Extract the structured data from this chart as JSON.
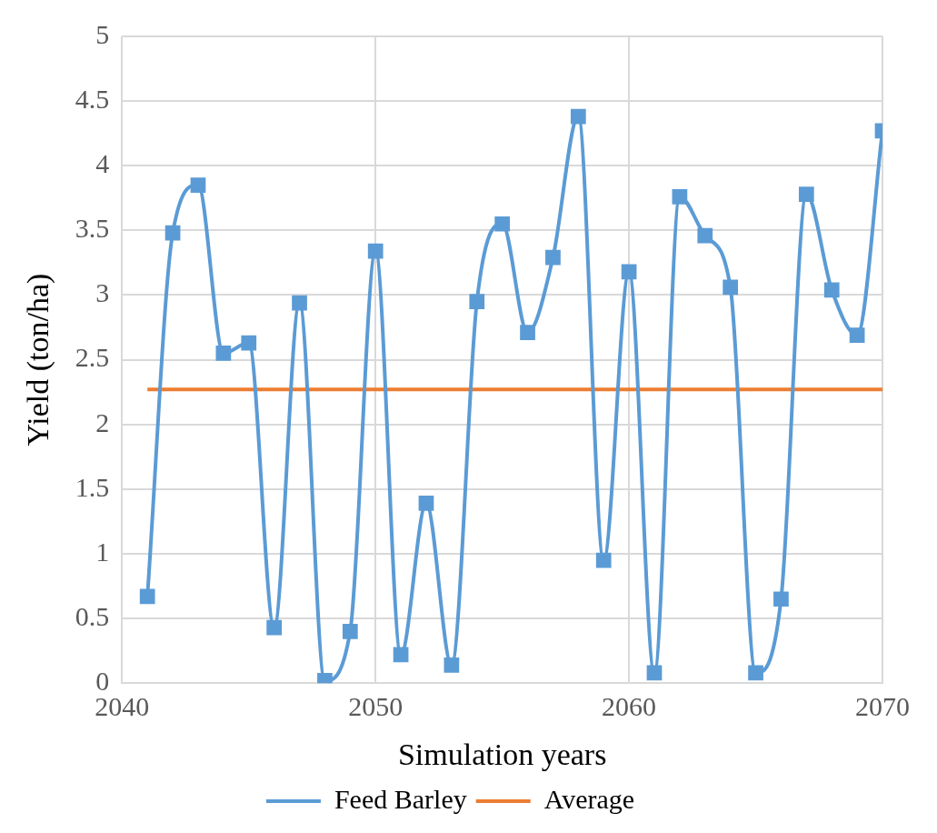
{
  "chart_data": {
    "type": "line",
    "xlabel": "Simulation years",
    "ylabel": "Yield (ton/ha)",
    "xlim": [
      2040,
      2070
    ],
    "xticks": [
      2040,
      2050,
      2060,
      2070
    ],
    "ylim": [
      0,
      5
    ],
    "yticks": [
      0,
      0.5,
      1,
      1.5,
      2,
      2.5,
      3,
      3.5,
      4,
      4.5,
      5
    ],
    "grid": true,
    "legend": "bottom",
    "marker": "square",
    "series": [
      {
        "name": "Feed Barley",
        "color": "#5b9bd5",
        "x": [
          2041,
          2042,
          2043,
          2044,
          2045,
          2046,
          2047,
          2048,
          2049,
          2050,
          2051,
          2052,
          2053,
          2054,
          2055,
          2056,
          2057,
          2058,
          2059,
          2060,
          2061,
          2062,
          2063,
          2064,
          2065,
          2066,
          2067,
          2068,
          2069,
          2070
        ],
        "values": [
          0.67,
          3.48,
          3.85,
          2.55,
          2.63,
          0.43,
          2.94,
          0.02,
          0.4,
          3.34,
          0.22,
          1.39,
          0.14,
          2.95,
          3.55,
          2.71,
          3.29,
          4.38,
          0.95,
          3.18,
          0.08,
          3.76,
          3.46,
          3.06,
          0.08,
          0.65,
          3.78,
          3.04,
          2.69,
          4.27
        ]
      },
      {
        "name": "Average",
        "color": "#ed7d31",
        "marker": "none",
        "x": [
          2041,
          2070
        ],
        "values": [
          2.27,
          2.27
        ]
      }
    ]
  }
}
